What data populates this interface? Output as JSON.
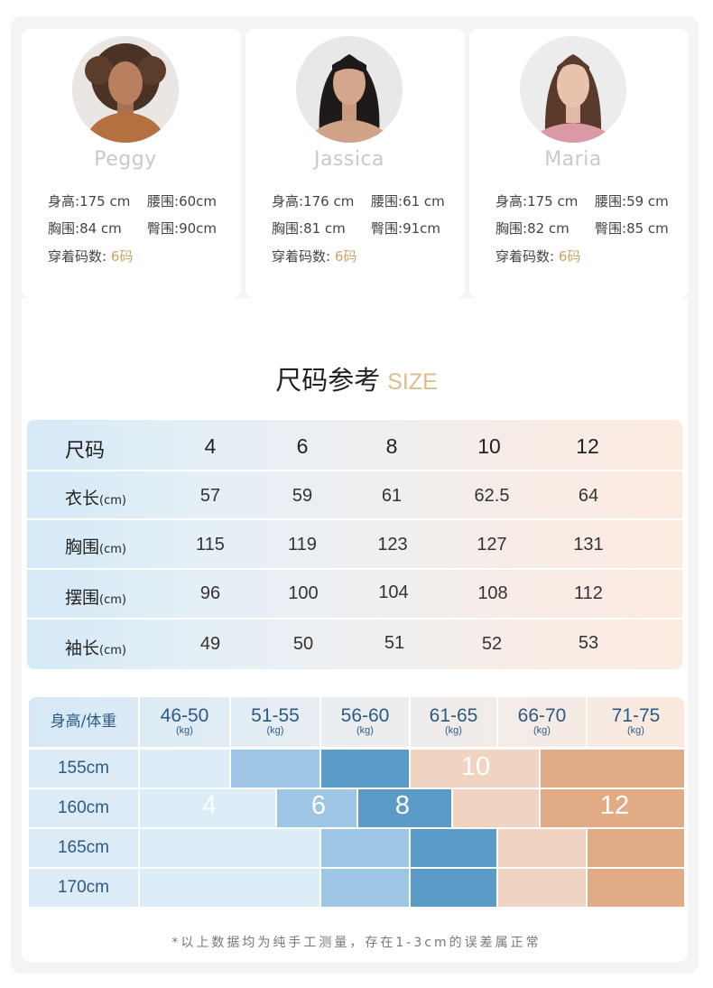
{
  "models": [
    {
      "name": "Peggy",
      "stats": [
        {
          "label": "身高:",
          "value": "175 cm"
        },
        {
          "label": "腰围:",
          "value": "60cm"
        },
        {
          "label": "胸围:",
          "value": "84 cm"
        },
        {
          "label": "臀围:",
          "value": "90cm"
        }
      ],
      "size_label": "穿着码数: ",
      "size_value": "6码"
    },
    {
      "name": "Jassica",
      "stats": [
        {
          "label": "身高:",
          "value": "176 cm"
        },
        {
          "label": "腰围:",
          "value": "61 cm"
        },
        {
          "label": "胸围:",
          "value": "81 cm"
        },
        {
          "label": "臀围:",
          "value": "91cm"
        }
      ],
      "size_label": "穿着码数: ",
      "size_value": "6码"
    },
    {
      "name": "Maria",
      "stats": [
        {
          "label": "身高:",
          "value": "175 cm"
        },
        {
          "label": "腰围:",
          "value": "59 cm"
        },
        {
          "label": "胸围:",
          "value": "82 cm"
        },
        {
          "label": "臀围:",
          "value": "85 cm"
        }
      ],
      "size_label": "穿着码数: ",
      "size_value": "6码"
    }
  ],
  "title": {
    "cn": "尺码参考",
    "en": "SIZE"
  },
  "size_table": {
    "header_label": "尺码",
    "sizes": [
      "4",
      "6",
      "8",
      "10",
      "12"
    ],
    "rows": [
      {
        "label": "衣长",
        "unit": "(cm)",
        "values": [
          "57",
          "59",
          "61",
          "62.5",
          "64"
        ]
      },
      {
        "label": "胸围",
        "unit": "(cm)",
        "values": [
          "115",
          "119",
          "123",
          "127",
          "131"
        ]
      },
      {
        "label": "摆围",
        "unit": "(cm)",
        "values": [
          "96",
          "100",
          "104",
          "108",
          "112"
        ]
      },
      {
        "label": "袖长",
        "unit": "(cm)",
        "values": [
          "49",
          "50",
          "51",
          "52",
          "53"
        ]
      }
    ]
  },
  "weight_chart": {
    "corner": "身高/体重",
    "weight_ranges": [
      "46-50",
      "51-55",
      "56-60",
      "61-65",
      "66-70",
      "71-75"
    ],
    "weight_unit": "(kg)",
    "heights": [
      "155cm",
      "160cm",
      "165cm",
      "170cm"
    ],
    "size_labels": [
      "4",
      "6",
      "8",
      "10",
      "12"
    ],
    "colors": {
      "size_4": "#dcedf8",
      "size_6": "#9cc6e3",
      "size_8": "#5b9bc8",
      "size_10": "#f0d4c1",
      "size_12": "#e0ab85"
    }
  },
  "note": "*以上数据均为纯手工测量，存在1-3cm的误差属正常"
}
